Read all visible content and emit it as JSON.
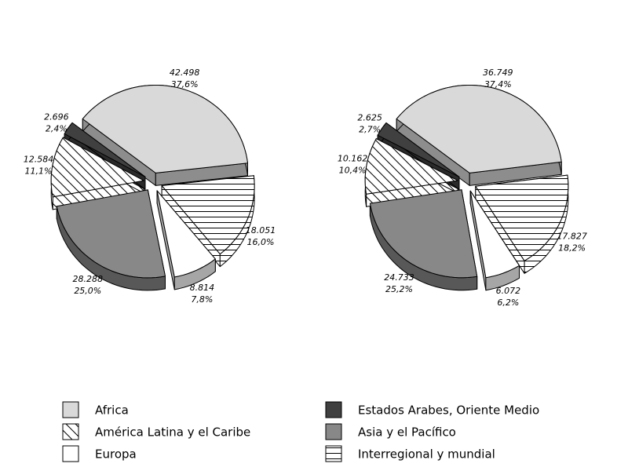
{
  "categories": [
    "Africa",
    "Interregional y mundial",
    "Europa",
    "Asia y el Pacífico",
    "América Latina y el Caribe",
    "Estados Arabes, Oriente Medio"
  ],
  "colors": [
    "#d9d9d9",
    "#ffffff",
    "#ffffff",
    "#888888",
    "#ffffff",
    "#404040"
  ],
  "patterns": [
    "none",
    "horizontal",
    "none",
    "none",
    "diagonal",
    "none"
  ],
  "chart_data": [
    {
      "type": "pie",
      "values": [
        42498,
        18051,
        8814,
        28288,
        12584,
        2696
      ],
      "value_labels": [
        "42.498",
        "18.051",
        "8.814",
        "28.288",
        "12.584",
        "2.696"
      ],
      "percent_labels": [
        "37,6%",
        "16,0%",
        "7,8%",
        "25,0%",
        "11,1%",
        "2,4%"
      ]
    },
    {
      "type": "pie",
      "values": [
        36749,
        17827,
        6072,
        24733,
        10162,
        2625
      ],
      "value_labels": [
        "36.749",
        "17.827",
        "6.072",
        "24.733",
        "10.162",
        "2.625"
      ],
      "percent_labels": [
        "37,4%",
        "18,2%",
        "6,2%",
        "25,2%",
        "10,4%",
        "2,7%"
      ]
    }
  ]
}
